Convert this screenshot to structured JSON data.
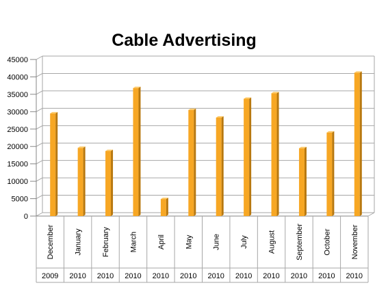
{
  "chart_data": {
    "type": "bar",
    "title": "Cable Advertising",
    "xlabel": "",
    "ylabel": "",
    "ylim": [
      0,
      45000
    ],
    "yticks": [
      0,
      5000,
      10000,
      15000,
      20000,
      25000,
      30000,
      35000,
      40000,
      45000
    ],
    "grid": true,
    "legend": "none",
    "categories": [
      "December",
      "January",
      "February",
      "March",
      "April",
      "May",
      "June",
      "July",
      "August",
      "September",
      "October",
      "November"
    ],
    "groups": [
      "2009",
      "2010",
      "2010",
      "2010",
      "2010",
      "2010",
      "2010",
      "2010",
      "2010",
      "2010",
      "2010",
      "2010"
    ],
    "values": [
      29500,
      19600,
      18700,
      36800,
      4900,
      30500,
      28300,
      33700,
      35300,
      19500,
      24000,
      41200
    ],
    "colors": {
      "bar_front": "#F7A724",
      "bar_side": "#B8780F",
      "bar_top": "#FCC968",
      "grid": "#A6A6A6",
      "axis": "#868686"
    }
  }
}
